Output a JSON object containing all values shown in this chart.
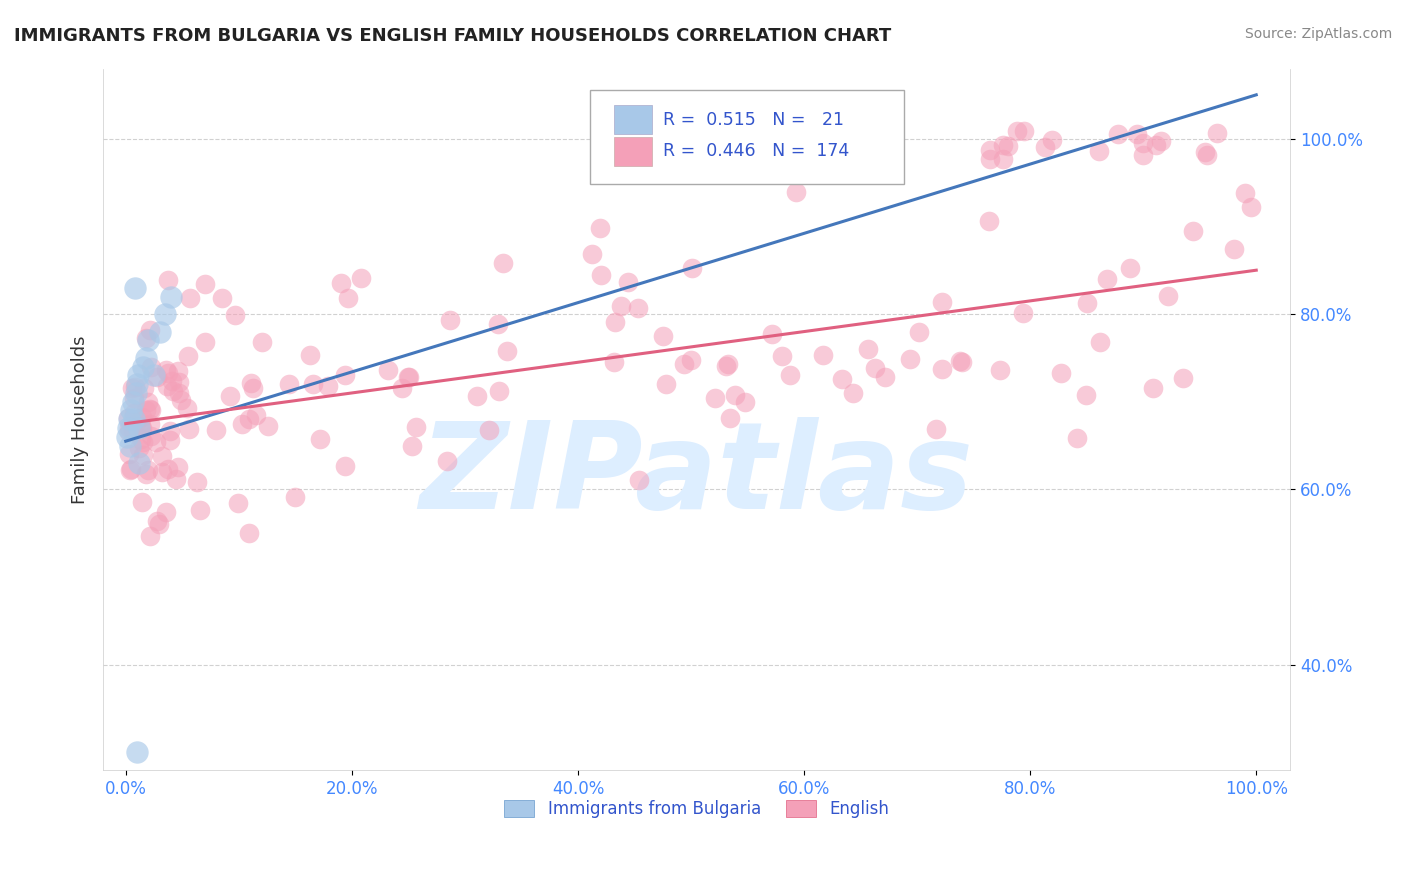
{
  "title": "IMMIGRANTS FROM BULGARIA VS ENGLISH FAMILY HOUSEHOLDS CORRELATION CHART",
  "source": "Source: ZipAtlas.com",
  "ylabel": "Family Households",
  "legend_labels": [
    "Immigrants from Bulgaria",
    "English"
  ],
  "R_blue": 0.515,
  "N_blue": 21,
  "R_pink": 0.446,
  "N_pink": 174,
  "blue_color": "#a8c8e8",
  "blue_edge_color": "#6699cc",
  "pink_color": "#f4a0b8",
  "pink_edge_color": "#e06080",
  "blue_line_color": "#4477bb",
  "pink_line_color": "#e06080",
  "background_color": "#ffffff",
  "grid_color": "#cccccc",
  "title_color": "#222222",
  "source_color": "#888888",
  "axis_tick_color": "#4488ff",
  "ylabel_color": "#333333",
  "legend_text_color": "#3355cc",
  "watermark_text": "ZIPatlas",
  "watermark_color": "#ddeeff",
  "blue_trend_x0": 0.0,
  "blue_trend_y0": 65.5,
  "blue_trend_x1": 100.0,
  "blue_trend_y1": 105.0,
  "pink_trend_x0": 0.0,
  "pink_trend_y0": 67.5,
  "pink_trend_x1": 100.0,
  "pink_trend_y1": 85.0,
  "yticks": [
    40.0,
    60.0,
    80.0,
    100.0
  ],
  "xticks": [
    0.0,
    20.0,
    40.0,
    60.0,
    80.0,
    100.0
  ],
  "ylim": [
    28,
    108
  ],
  "xlim": [
    -2,
    103
  ]
}
